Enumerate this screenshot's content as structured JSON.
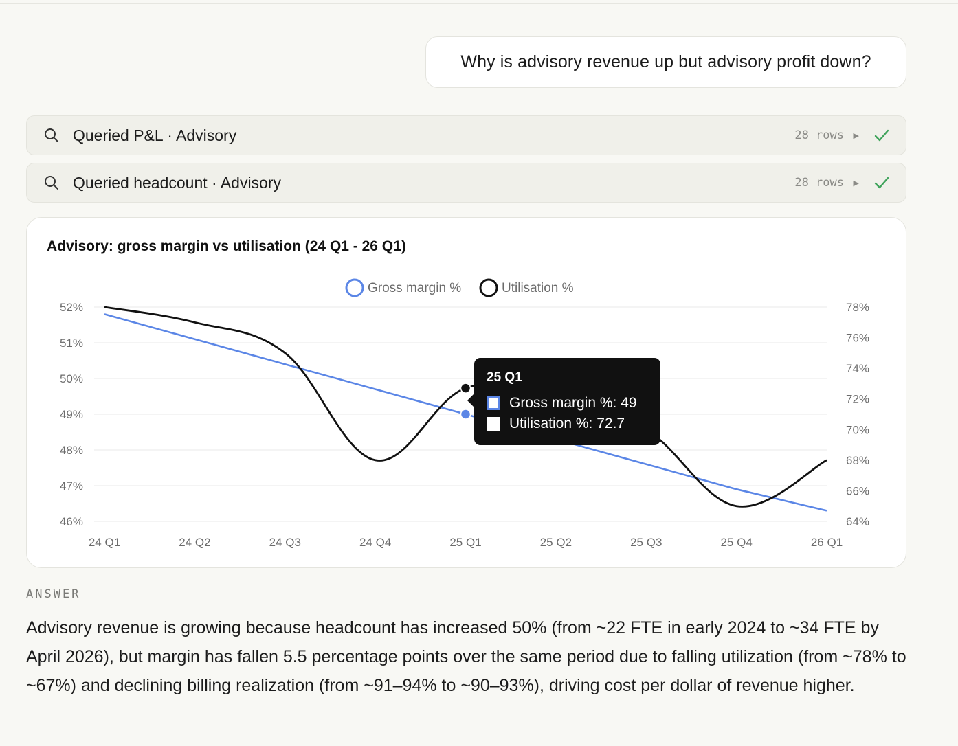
{
  "user_message": "Why is advisory revenue up but advisory profit down?",
  "tool_calls": [
    {
      "label": "Queried P&L · Advisory",
      "rows": "28 rows",
      "icon": "search-icon",
      "status_icon": "check-icon",
      "status_color": "#3fa35b"
    },
    {
      "label": "Queried headcount · Advisory",
      "rows": "28 rows",
      "icon": "search-icon",
      "status_icon": "check-icon",
      "status_color": "#3fa35b"
    }
  ],
  "chart": {
    "title": "Advisory: gross margin vs utilisation (24 Q1 - 26 Q1)",
    "tooltip": {
      "title": "25 Q1",
      "lines": [
        "Gross margin %: 49",
        "Utilisation %: 72.7"
      ]
    }
  },
  "chart_data": {
    "type": "line",
    "categories": [
      "24 Q1",
      "24 Q2",
      "24 Q3",
      "24 Q4",
      "25 Q1",
      "25 Q2",
      "25 Q3",
      "25 Q4",
      "26 Q1"
    ],
    "series": [
      {
        "name": "Gross margin %",
        "axis": "left",
        "color": "#5b86e6",
        "smooth": false,
        "values": [
          51.8,
          51.1,
          50.4,
          49.7,
          49.0,
          48.3,
          47.6,
          46.9,
          46.3
        ]
      },
      {
        "name": "Utilisation %",
        "axis": "right",
        "color": "#111111",
        "smooth": true,
        "values": [
          78.0,
          77.0,
          75.0,
          68.0,
          72.7,
          72.0,
          70.0,
          65.0,
          68.0
        ]
      }
    ],
    "y_left": {
      "min": 46,
      "max": 52,
      "step": 1,
      "ticks": [
        "46%",
        "47%",
        "48%",
        "49%",
        "50%",
        "51%",
        "52%"
      ]
    },
    "y_right": {
      "min": 64,
      "max": 78,
      "step": 2,
      "ticks": [
        "64%",
        "66%",
        "68%",
        "70%",
        "72%",
        "74%",
        "76%",
        "78%"
      ]
    },
    "legend": {
      "placement": "top-center",
      "entries": [
        "Gross margin %",
        "Utilisation %"
      ]
    },
    "grid": "horizontal",
    "highlight_index": 4
  },
  "answer": {
    "heading": "ANSWER",
    "text": "Advisory revenue is growing because headcount has increased 50% (from ~22 FTE in early 2024 to ~34 FTE by April 2026), but margin has fallen 5.5 percentage points over the same period due to falling utilization (from ~78% to ~67%) and declining billing realization (from ~91–94% to ~90–93%), driving cost per dollar of revenue higher."
  }
}
